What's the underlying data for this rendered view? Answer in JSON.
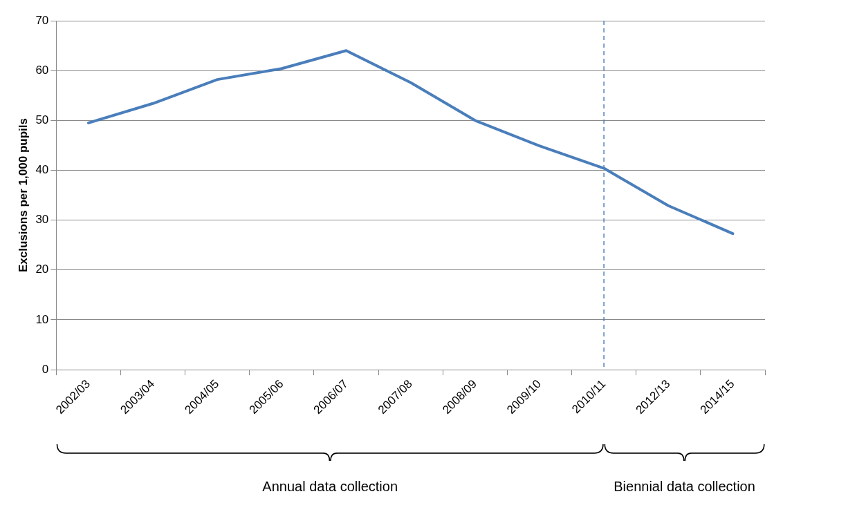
{
  "chart_data": {
    "type": "line",
    "ylabel": "Exclusions per 1,000 pupils",
    "categories": [
      "2002/03",
      "2003/04",
      "2004/05",
      "2005/06",
      "2006/07",
      "2007/08",
      "2008/09",
      "2009/10",
      "2010/11",
      "2012/13",
      "2014/15"
    ],
    "series": [
      {
        "color": "#4a7ebb",
        "values": [
          49.5,
          53.4,
          58.2,
          60.4,
          64.0,
          57.6,
          50.0,
          44.9,
          40.4,
          32.9,
          27.3
        ]
      }
    ],
    "ylim": [
      0,
      70
    ],
    "yticks": [
      0,
      10,
      20,
      30,
      40,
      50,
      60,
      70
    ],
    "grid": "y",
    "legend": false,
    "marker": "none",
    "line_style": "solid",
    "ref_lines": [
      {
        "axis": "x",
        "value": "2010/11",
        "color": "#4a7ebb",
        "line_style": "dashed"
      }
    ],
    "annotations": [
      "Annual data collection",
      "Biennial data collection"
    ]
  }
}
